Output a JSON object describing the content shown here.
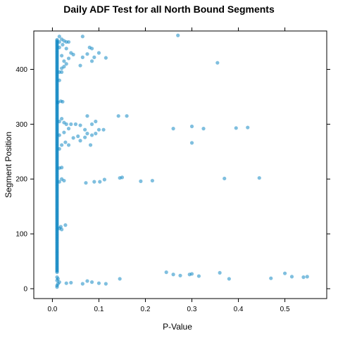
{
  "chart_data": {
    "type": "scatter",
    "title": "Daily ADF Test for all North Bound Segments",
    "xlabel": "P-Value",
    "ylabel": "Segment Position",
    "xlim": [
      -0.04,
      0.59
    ],
    "ylim": [
      -18,
      470
    ],
    "xticks": [
      0.0,
      0.1,
      0.2,
      0.3,
      0.4,
      0.5
    ],
    "xtick_labels": [
      "0.0",
      "0.1",
      "0.2",
      "0.3",
      "0.4",
      "0.5"
    ],
    "yticks": [
      0,
      100,
      200,
      300,
      400
    ],
    "ytick_labels": [
      "0",
      "100",
      "200",
      "300",
      "400"
    ],
    "grid": false,
    "legend": "none",
    "point_color": "#0080C0",
    "point_opacity": 0.5,
    "dense_column": {
      "x": 0.01,
      "y_from": 30,
      "y_to": 455,
      "step": 2
    },
    "points": [
      {
        "x": 0.01,
        "y": 3
      },
      {
        "x": 0.01,
        "y": 6
      },
      {
        "x": 0.012,
        "y": 9
      },
      {
        "x": 0.015,
        "y": 12
      },
      {
        "x": 0.01,
        "y": 15
      },
      {
        "x": 0.012,
        "y": 18
      },
      {
        "x": 0.01,
        "y": 21
      },
      {
        "x": 0.03,
        "y": 10
      },
      {
        "x": 0.04,
        "y": 11
      },
      {
        "x": 0.065,
        "y": 9
      },
      {
        "x": 0.075,
        "y": 14
      },
      {
        "x": 0.085,
        "y": 12
      },
      {
        "x": 0.1,
        "y": 10
      },
      {
        "x": 0.115,
        "y": 9
      },
      {
        "x": 0.145,
        "y": 18
      },
      {
        "x": 0.245,
        "y": 30
      },
      {
        "x": 0.26,
        "y": 26
      },
      {
        "x": 0.275,
        "y": 24
      },
      {
        "x": 0.295,
        "y": 26
      },
      {
        "x": 0.3,
        "y": 27
      },
      {
        "x": 0.315,
        "y": 23
      },
      {
        "x": 0.36,
        "y": 29
      },
      {
        "x": 0.38,
        "y": 18
      },
      {
        "x": 0.47,
        "y": 19
      },
      {
        "x": 0.5,
        "y": 28
      },
      {
        "x": 0.515,
        "y": 22
      },
      {
        "x": 0.54,
        "y": 21
      },
      {
        "x": 0.548,
        "y": 22
      },
      {
        "x": 0.015,
        "y": 110
      },
      {
        "x": 0.02,
        "y": 108
      },
      {
        "x": 0.028,
        "y": 116
      },
      {
        "x": 0.018,
        "y": 113
      },
      {
        "x": 0.015,
        "y": 195
      },
      {
        "x": 0.02,
        "y": 200
      },
      {
        "x": 0.025,
        "y": 197
      },
      {
        "x": 0.072,
        "y": 193
      },
      {
        "x": 0.09,
        "y": 195
      },
      {
        "x": 0.102,
        "y": 195
      },
      {
        "x": 0.112,
        "y": 199
      },
      {
        "x": 0.145,
        "y": 202
      },
      {
        "x": 0.15,
        "y": 203
      },
      {
        "x": 0.19,
        "y": 196
      },
      {
        "x": 0.215,
        "y": 197
      },
      {
        "x": 0.37,
        "y": 201
      },
      {
        "x": 0.445,
        "y": 202
      },
      {
        "x": 0.015,
        "y": 220
      },
      {
        "x": 0.02,
        "y": 221
      },
      {
        "x": 0.015,
        "y": 255
      },
      {
        "x": 0.02,
        "y": 262
      },
      {
        "x": 0.028,
        "y": 267
      },
      {
        "x": 0.035,
        "y": 262
      },
      {
        "x": 0.045,
        "y": 275
      },
      {
        "x": 0.055,
        "y": 278
      },
      {
        "x": 0.06,
        "y": 270
      },
      {
        "x": 0.07,
        "y": 276
      },
      {
        "x": 0.075,
        "y": 283
      },
      {
        "x": 0.082,
        "y": 262
      },
      {
        "x": 0.085,
        "y": 280
      },
      {
        "x": 0.093,
        "y": 283
      },
      {
        "x": 0.1,
        "y": 290
      },
      {
        "x": 0.015,
        "y": 280
      },
      {
        "x": 0.025,
        "y": 285
      },
      {
        "x": 0.035,
        "y": 292
      },
      {
        "x": 0.04,
        "y": 300
      },
      {
        "x": 0.05,
        "y": 300
      },
      {
        "x": 0.06,
        "y": 298
      },
      {
        "x": 0.07,
        "y": 290
      },
      {
        "x": 0.075,
        "y": 315
      },
      {
        "x": 0.085,
        "y": 300
      },
      {
        "x": 0.093,
        "y": 305
      },
      {
        "x": 0.11,
        "y": 290
      },
      {
        "x": 0.142,
        "y": 315
      },
      {
        "x": 0.16,
        "y": 315
      },
      {
        "x": 0.015,
        "y": 305
      },
      {
        "x": 0.02,
        "y": 310
      },
      {
        "x": 0.025,
        "y": 303
      },
      {
        "x": 0.03,
        "y": 300
      },
      {
        "x": 0.012,
        "y": 340
      },
      {
        "x": 0.018,
        "y": 342
      },
      {
        "x": 0.022,
        "y": 341
      },
      {
        "x": 0.26,
        "y": 292
      },
      {
        "x": 0.3,
        "y": 296
      },
      {
        "x": 0.3,
        "y": 266
      },
      {
        "x": 0.325,
        "y": 292
      },
      {
        "x": 0.395,
        "y": 293
      },
      {
        "x": 0.42,
        "y": 294
      },
      {
        "x": 0.015,
        "y": 395
      },
      {
        "x": 0.02,
        "y": 402
      },
      {
        "x": 0.025,
        "y": 405
      },
      {
        "x": 0.03,
        "y": 410
      },
      {
        "x": 0.035,
        "y": 420
      },
      {
        "x": 0.04,
        "y": 430
      },
      {
        "x": 0.045,
        "y": 427
      },
      {
        "x": 0.06,
        "y": 407
      },
      {
        "x": 0.065,
        "y": 422
      },
      {
        "x": 0.075,
        "y": 428
      },
      {
        "x": 0.085,
        "y": 415
      },
      {
        "x": 0.085,
        "y": 438
      },
      {
        "x": 0.09,
        "y": 422
      },
      {
        "x": 0.1,
        "y": 430
      },
      {
        "x": 0.115,
        "y": 421
      },
      {
        "x": 0.015,
        "y": 440
      },
      {
        "x": 0.022,
        "y": 445
      },
      {
        "x": 0.03,
        "y": 438
      },
      {
        "x": 0.015,
        "y": 450
      },
      {
        "x": 0.02,
        "y": 455
      },
      {
        "x": 0.025,
        "y": 452
      },
      {
        "x": 0.03,
        "y": 450
      },
      {
        "x": 0.035,
        "y": 450
      },
      {
        "x": 0.015,
        "y": 460
      },
      {
        "x": 0.065,
        "y": 460
      },
      {
        "x": 0.08,
        "y": 440
      },
      {
        "x": 0.27,
        "y": 462
      },
      {
        "x": 0.355,
        "y": 412
      },
      {
        "x": 0.015,
        "y": 380
      },
      {
        "x": 0.02,
        "y": 425
      },
      {
        "x": 0.025,
        "y": 415
      },
      {
        "x": 0.02,
        "y": 395
      }
    ]
  }
}
